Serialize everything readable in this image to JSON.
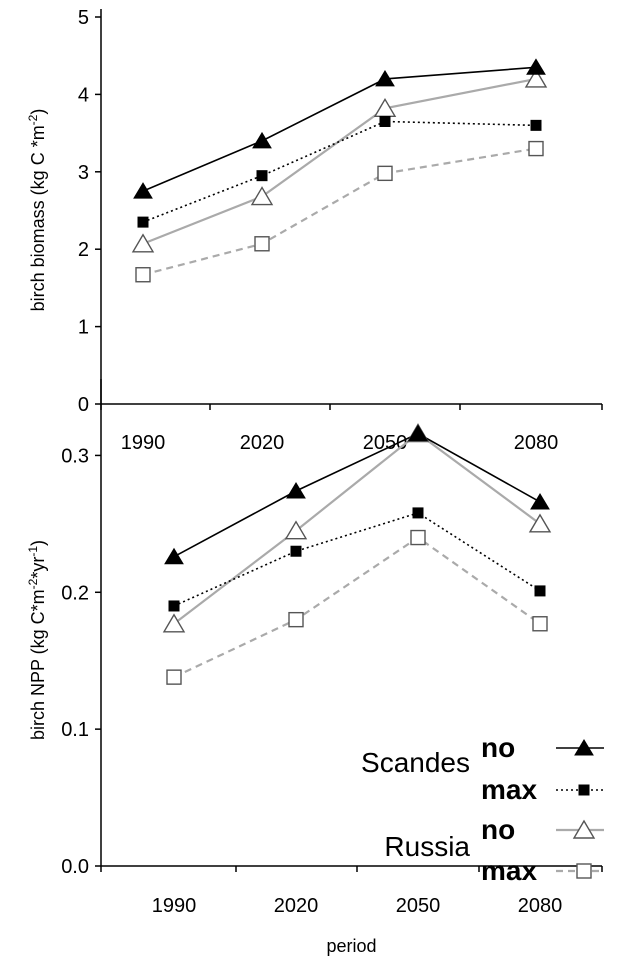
{
  "chart_data": [
    {
      "type": "line",
      "title": "",
      "xlabel": "",
      "ylabel": "birch biomass (kg C *m⁻²)",
      "ylabel_parts": [
        "birch biomass (kg C *m",
        "-2",
        ")"
      ],
      "categories": [
        "1990",
        "2020",
        "2050",
        "2080"
      ],
      "ylim": [
        0,
        5
      ],
      "yticks": [
        "0",
        "1",
        "2",
        "3",
        "4",
        "5"
      ],
      "grid": false,
      "legend": "none",
      "series": [
        {
          "name": "Scandes no",
          "values": [
            2.75,
            3.4,
            4.2,
            4.35
          ],
          "color": "#000000",
          "dash": "solid",
          "marker": "triangle-filled"
        },
        {
          "name": "Scandes max",
          "values": [
            2.35,
            2.95,
            3.65,
            3.6
          ],
          "color": "#000000",
          "dash": "dotted",
          "marker": "square-filled"
        },
        {
          "name": "Russia no",
          "values": [
            2.07,
            2.68,
            3.82,
            4.2
          ],
          "color": "#aaaaaa",
          "dash": "solid",
          "marker": "triangle-open"
        },
        {
          "name": "Russia max",
          "values": [
            1.67,
            2.07,
            2.98,
            3.3
          ],
          "color": "#aaaaaa",
          "dash": "dashed",
          "marker": "square-open"
        }
      ]
    },
    {
      "type": "line",
      "title": "",
      "xlabel": "period",
      "ylabel": "birch NPP (kg C*m⁻²*yr⁻¹)",
      "ylabel_parts": [
        "birch NPP (kg C*m",
        "-2",
        "*yr",
        "-1",
        ")"
      ],
      "categories": [
        "1990",
        "2020",
        "2050",
        "2080"
      ],
      "ylim": [
        0,
        0.35
      ],
      "yticks": [
        "0.0",
        "0.1",
        "0.2",
        "0.3"
      ],
      "grid": false,
      "legend": "bottom-right",
      "series": [
        {
          "name": "Scandes no",
          "values": [
            0.226,
            0.274,
            0.316,
            0.266
          ],
          "color": "#000000",
          "dash": "solid",
          "marker": "triangle-filled"
        },
        {
          "name": "Scandes max",
          "values": [
            0.19,
            0.23,
            0.258,
            0.201
          ],
          "color": "#000000",
          "dash": "dotted",
          "marker": "square-filled"
        },
        {
          "name": "Russia no",
          "values": [
            0.177,
            0.245,
            0.316,
            0.25
          ],
          "color": "#aaaaaa",
          "dash": "solid",
          "marker": "triangle-open"
        },
        {
          "name": "Russia max",
          "values": [
            0.138,
            0.18,
            0.24,
            0.177
          ],
          "color": "#aaaaaa",
          "dash": "dashed",
          "marker": "square-open"
        }
      ]
    }
  ],
  "legend": {
    "groups": [
      {
        "region": "Scandes",
        "entries": [
          {
            "label": "no",
            "series": 0
          },
          {
            "label": "max",
            "series": 1
          }
        ]
      },
      {
        "region": "Russia",
        "entries": [
          {
            "label": "no",
            "series": 2
          },
          {
            "label": "max",
            "series": 3
          }
        ]
      }
    ]
  }
}
